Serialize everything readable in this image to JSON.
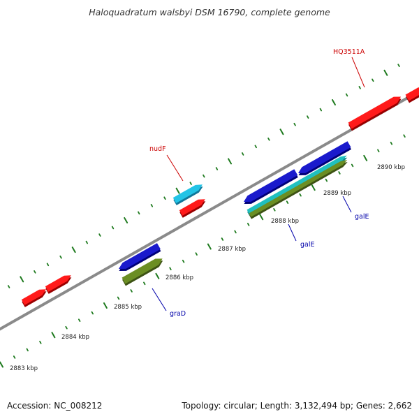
{
  "title": "Haloquadratum walsbyi DSM 16790, complete genome",
  "footer": {
    "accession": "Accession: NC_008212",
    "summary": "Topology: circular; Length: 3,132,494 bp; Genes: 2,662"
  },
  "colors": {
    "backbone": "#8a8a8a",
    "tick": "#1e7a1e",
    "label_red": "#cc0000",
    "label_blue": "#0000aa",
    "gene_red": "#ff1a1a",
    "gene_blue": "#1a1acc",
    "gene_cyan": "#22c4e6",
    "gene_olive": "#6b8e23",
    "gene_teal": "#20c0c0"
  },
  "axis_labels": [
    "2883 kbp",
    "2884 kbp",
    "2885 kbp",
    "2886 kbp",
    "2887 kbp",
    "2888 kbp",
    "2889 kbp",
    "2890 kbp"
  ],
  "gene_labels": [
    {
      "text": "HQ3511A",
      "color": "red"
    },
    {
      "text": "nudF",
      "color": "red"
    },
    {
      "text": "graD",
      "color": "blue"
    },
    {
      "text": "galE",
      "color": "blue"
    },
    {
      "text": "galE",
      "color": "blue"
    }
  ]
}
